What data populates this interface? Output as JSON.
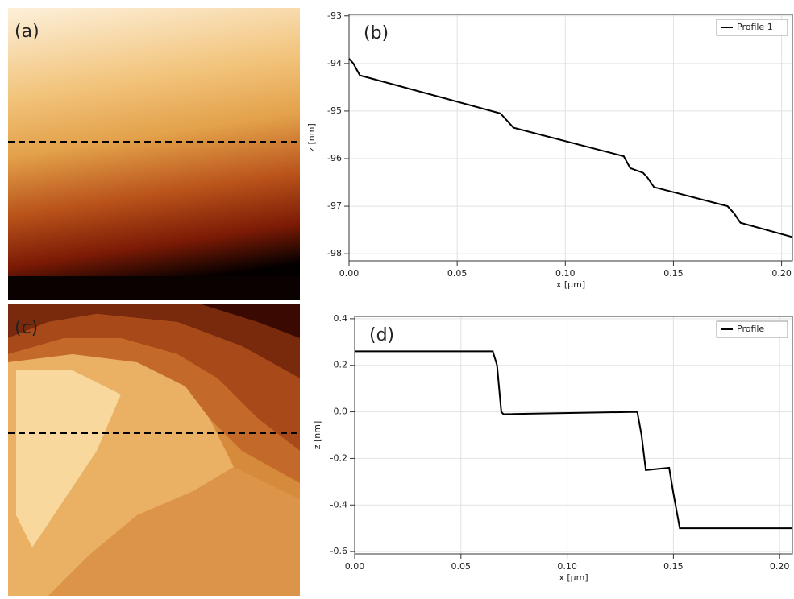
{
  "images": [
    {
      "label": "(a)"
    },
    {
      "label": "(c)"
    }
  ],
  "chart_data": [
    {
      "type": "line",
      "panel_label": "(b)",
      "x_label": "x [µm]",
      "y_label": "z [nm]",
      "x": [
        0,
        0.002,
        0.005,
        0.07,
        0.073,
        0.076,
        0.127,
        0.13,
        0.136,
        0.138,
        0.141,
        0.175,
        0.178,
        0.181,
        0.205
      ],
      "series": [
        {
          "name": "Profile 1",
          "color": "#000000",
          "values": [
            -93.9,
            -94.0,
            -94.25,
            -95.05,
            -95.2,
            -95.35,
            -95.95,
            -96.2,
            -96.3,
            -96.4,
            -96.6,
            -97.0,
            -97.15,
            -97.35,
            -97.65
          ]
        }
      ],
      "xlim": [
        0,
        0.205
      ],
      "ylim": [
        -98.15,
        -92.97
      ],
      "xticks": [
        {
          "value": 0,
          "label": "0.00"
        },
        {
          "value": 0.05,
          "label": "0.05"
        },
        {
          "value": 0.1,
          "label": "0.10"
        },
        {
          "value": 0.15,
          "label": "0.15"
        },
        {
          "value": 0.2,
          "label": "0.20"
        }
      ],
      "yticks": [
        -93,
        -94,
        -95,
        -96,
        -97,
        -98
      ],
      "grid": true,
      "legend": "top-right"
    },
    {
      "type": "line",
      "panel_label": "(d)",
      "x_label": "x [µm]",
      "y_label": "z [nm]",
      "x": [
        0,
        0.065,
        0.067,
        0.069,
        0.07,
        0.133,
        0.135,
        0.137,
        0.148,
        0.15,
        0.153,
        0.206
      ],
      "series": [
        {
          "name": "Profile",
          "color": "#000000",
          "values": [
            0.26,
            0.26,
            0.2,
            0.0,
            -0.01,
            0.0,
            -0.1,
            -0.25,
            -0.24,
            -0.35,
            -0.5,
            -0.5
          ]
        }
      ],
      "xlim": [
        0,
        0.206
      ],
      "ylim": [
        -0.61,
        0.41
      ],
      "xticks": [
        {
          "value": 0,
          "label": "0.00"
        },
        {
          "value": 0.05,
          "label": "0.05"
        },
        {
          "value": 0.1,
          "label": "0.10"
        },
        {
          "value": 0.15,
          "label": "0.15"
        },
        {
          "value": 0.2,
          "label": "0.20"
        }
      ],
      "yticks": [
        0.4,
        0.2,
        {
          "value": 0,
          "label": "0.0"
        },
        -0.2,
        -0.4,
        -0.6
      ],
      "grid": true,
      "legend": "top-right"
    }
  ]
}
